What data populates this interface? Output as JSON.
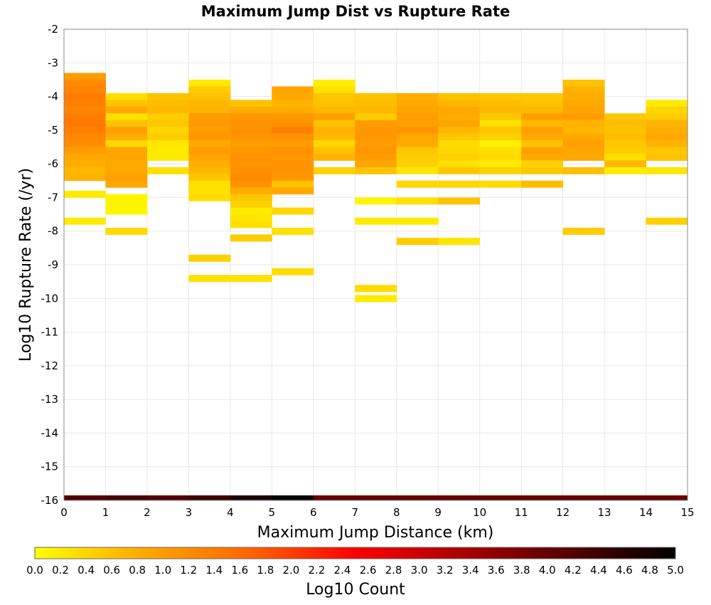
{
  "chart_data": {
    "type": "heatmap",
    "title": "Maximum Jump Dist vs Rupture Rate",
    "xlabel": "Maximum Jump Distance (km)",
    "ylabel": "Log10 Rupture Rate (/yr)",
    "xlim": [
      0,
      15
    ],
    "ylim": [
      -16,
      -2
    ],
    "x_ticks": [
      "0",
      "1",
      "2",
      "3",
      "4",
      "5",
      "6",
      "7",
      "8",
      "9",
      "10",
      "11",
      "12",
      "13",
      "14",
      "15"
    ],
    "y_ticks": [
      "-2",
      "-3",
      "-4",
      "-5",
      "-6",
      "-7",
      "-8",
      "-9",
      "-10",
      "-11",
      "-12",
      "-13",
      "-14",
      "-15",
      "-16"
    ],
    "x_bin_width": 1,
    "y_bin_width": 0.2,
    "grid": true,
    "colorbar": {
      "label": "Log10 Count",
      "range": [
        0,
        5
      ],
      "ticks": [
        "0.0",
        "0.2",
        "0.4",
        "0.6",
        "0.8",
        "1.0",
        "1.2",
        "1.4",
        "1.6",
        "1.8",
        "2.0",
        "2.2",
        "2.4",
        "2.6",
        "2.8",
        "3.0",
        "3.2",
        "3.4",
        "3.6",
        "3.8",
        "4.0",
        "4.2",
        "4.4",
        "4.6",
        "4.8",
        "5.0"
      ],
      "colors": [
        "#ffff00",
        "#ffaa00",
        "#ff6600",
        "#ff0000",
        "#aa0000",
        "#550000",
        "#000000"
      ],
      "placement": "bottom"
    },
    "cells": [
      {
        "x": 0,
        "y": -3.4,
        "v": 1.0
      },
      {
        "x": 0,
        "y": -3.6,
        "v": 1.2
      },
      {
        "x": 0,
        "y": -3.8,
        "v": 1.3
      },
      {
        "x": 0,
        "y": -4.0,
        "v": 1.4
      },
      {
        "x": 0,
        "y": -4.2,
        "v": 1.35
      },
      {
        "x": 0,
        "y": -4.4,
        "v": 1.3
      },
      {
        "x": 0,
        "y": -4.6,
        "v": 1.4
      },
      {
        "x": 0,
        "y": -4.8,
        "v": 1.45
      },
      {
        "x": 0,
        "y": -5.0,
        "v": 1.35
      },
      {
        "x": 0,
        "y": -5.2,
        "v": 1.25
      },
      {
        "x": 0,
        "y": -5.4,
        "v": 1.2
      },
      {
        "x": 0,
        "y": -5.6,
        "v": 1.0
      },
      {
        "x": 0,
        "y": -5.8,
        "v": 0.85
      },
      {
        "x": 0,
        "y": -6.0,
        "v": 0.8
      },
      {
        "x": 0,
        "y": -6.2,
        "v": 0.7
      },
      {
        "x": 0,
        "y": -6.4,
        "v": 0.75
      },
      {
        "x": 0,
        "y": -6.9,
        "v": 0.2
      },
      {
        "x": 0,
        "y": -7.7,
        "v": 0.2
      },
      {
        "x": 1,
        "y": -4.0,
        "v": 0.3
      },
      {
        "x": 1,
        "y": -4.2,
        "v": 0.6
      },
      {
        "x": 1,
        "y": -4.4,
        "v": 0.85
      },
      {
        "x": 1,
        "y": -4.6,
        "v": 0.3
      },
      {
        "x": 1,
        "y": -4.8,
        "v": 0.6
      },
      {
        "x": 1,
        "y": -5.0,
        "v": 0.95
      },
      {
        "x": 1,
        "y": -5.2,
        "v": 0.8
      },
      {
        "x": 1,
        "y": -5.4,
        "v": 0.4
      },
      {
        "x": 1,
        "y": -5.6,
        "v": 0.9
      },
      {
        "x": 1,
        "y": -5.8,
        "v": 0.9
      },
      {
        "x": 1,
        "y": -6.0,
        "v": 0.85
      },
      {
        "x": 1,
        "y": -6.2,
        "v": 0.85
      },
      {
        "x": 1,
        "y": -6.4,
        "v": 0.95
      },
      {
        "x": 1,
        "y": -6.6,
        "v": 0.85
      },
      {
        "x": 1,
        "y": -7.0,
        "v": 0.1
      },
      {
        "x": 1,
        "y": -7.2,
        "v": 0.1
      },
      {
        "x": 1,
        "y": -7.4,
        "v": 0.1
      },
      {
        "x": 1,
        "y": -8.0,
        "v": 0.35
      },
      {
        "x": 2,
        "y": -4.0,
        "v": 0.6
      },
      {
        "x": 2,
        "y": -4.2,
        "v": 0.65
      },
      {
        "x": 2,
        "y": -4.4,
        "v": 0.7
      },
      {
        "x": 2,
        "y": -4.6,
        "v": 0.5
      },
      {
        "x": 2,
        "y": -4.8,
        "v": 0.55
      },
      {
        "x": 2,
        "y": -5.0,
        "v": 0.4
      },
      {
        "x": 2,
        "y": -5.2,
        "v": 0.5
      },
      {
        "x": 2,
        "y": -5.4,
        "v": 0.25
      },
      {
        "x": 2,
        "y": -5.6,
        "v": 0.2
      },
      {
        "x": 2,
        "y": -5.8,
        "v": 0.2
      },
      {
        "x": 2,
        "y": -6.2,
        "v": 0.3
      },
      {
        "x": 3,
        "y": -3.6,
        "v": 0.2
      },
      {
        "x": 3,
        "y": -3.8,
        "v": 0.5
      },
      {
        "x": 3,
        "y": -4.0,
        "v": 0.6
      },
      {
        "x": 3,
        "y": -4.2,
        "v": 0.7
      },
      {
        "x": 3,
        "y": -4.4,
        "v": 0.75
      },
      {
        "x": 3,
        "y": -4.6,
        "v": 1.0
      },
      {
        "x": 3,
        "y": -4.8,
        "v": 1.05
      },
      {
        "x": 3,
        "y": -5.0,
        "v": 1.0
      },
      {
        "x": 3,
        "y": -5.2,
        "v": 1.05
      },
      {
        "x": 3,
        "y": -5.4,
        "v": 0.85
      },
      {
        "x": 3,
        "y": -5.6,
        "v": 1.0
      },
      {
        "x": 3,
        "y": -5.8,
        "v": 0.9
      },
      {
        "x": 3,
        "y": -6.0,
        "v": 0.8
      },
      {
        "x": 3,
        "y": -6.2,
        "v": 0.7
      },
      {
        "x": 3,
        "y": -6.4,
        "v": 0.55
      },
      {
        "x": 3,
        "y": -6.6,
        "v": 0.3
      },
      {
        "x": 3,
        "y": -6.8,
        "v": 0.3
      },
      {
        "x": 3,
        "y": -7.0,
        "v": 0.35
      },
      {
        "x": 3,
        "y": -8.8,
        "v": 0.45
      },
      {
        "x": 3,
        "y": -9.4,
        "v": 0.3
      },
      {
        "x": 4,
        "y": -4.2,
        "v": 0.6
      },
      {
        "x": 4,
        "y": -4.4,
        "v": 0.8
      },
      {
        "x": 4,
        "y": -4.6,
        "v": 1.05
      },
      {
        "x": 4,
        "y": -4.8,
        "v": 1.1
      },
      {
        "x": 4,
        "y": -5.0,
        "v": 1.15
      },
      {
        "x": 4,
        "y": -5.2,
        "v": 1.1
      },
      {
        "x": 4,
        "y": -5.4,
        "v": 1.0
      },
      {
        "x": 4,
        "y": -5.6,
        "v": 1.05
      },
      {
        "x": 4,
        "y": -5.8,
        "v": 1.15
      },
      {
        "x": 4,
        "y": -6.0,
        "v": 1.1
      },
      {
        "x": 4,
        "y": -6.2,
        "v": 1.15
      },
      {
        "x": 4,
        "y": -6.4,
        "v": 1.2
      },
      {
        "x": 4,
        "y": -6.6,
        "v": 1.1
      },
      {
        "x": 4,
        "y": -6.8,
        "v": 0.8
      },
      {
        "x": 4,
        "y": -7.0,
        "v": 0.55
      },
      {
        "x": 4,
        "y": -7.2,
        "v": 0.45
      },
      {
        "x": 4,
        "y": -7.4,
        "v": 0.2
      },
      {
        "x": 4,
        "y": -7.6,
        "v": 0.25
      },
      {
        "x": 4,
        "y": -7.8,
        "v": 0.3
      },
      {
        "x": 4,
        "y": -8.2,
        "v": 0.5
      },
      {
        "x": 4,
        "y": -9.4,
        "v": 0.3
      },
      {
        "x": 5,
        "y": -3.8,
        "v": 0.9
      },
      {
        "x": 5,
        "y": -4.0,
        "v": 0.85
      },
      {
        "x": 5,
        "y": -4.2,
        "v": 0.75
      },
      {
        "x": 5,
        "y": -4.4,
        "v": 0.8
      },
      {
        "x": 5,
        "y": -4.6,
        "v": 1.05
      },
      {
        "x": 5,
        "y": -4.8,
        "v": 1.15
      },
      {
        "x": 5,
        "y": -5.0,
        "v": 1.35
      },
      {
        "x": 5,
        "y": -5.2,
        "v": 1.15
      },
      {
        "x": 5,
        "y": -5.4,
        "v": 1.0
      },
      {
        "x": 5,
        "y": -5.6,
        "v": 1.15
      },
      {
        "x": 5,
        "y": -5.8,
        "v": 1.05
      },
      {
        "x": 5,
        "y": -6.0,
        "v": 1.1
      },
      {
        "x": 5,
        "y": -6.2,
        "v": 1.1
      },
      {
        "x": 5,
        "y": -6.4,
        "v": 1.05
      },
      {
        "x": 5,
        "y": -6.6,
        "v": 0.6
      },
      {
        "x": 5,
        "y": -6.8,
        "v": 0.85
      },
      {
        "x": 5,
        "y": -7.4,
        "v": 0.4
      },
      {
        "x": 5,
        "y": -8.0,
        "v": 0.3
      },
      {
        "x": 5,
        "y": -9.2,
        "v": 0.35
      },
      {
        "x": 6,
        "y": -3.6,
        "v": 0.15
      },
      {
        "x": 6,
        "y": -3.8,
        "v": 0.3
      },
      {
        "x": 6,
        "y": -4.0,
        "v": 0.55
      },
      {
        "x": 6,
        "y": -4.2,
        "v": 0.6
      },
      {
        "x": 6,
        "y": -4.4,
        "v": 0.7
      },
      {
        "x": 6,
        "y": -4.6,
        "v": 0.95
      },
      {
        "x": 6,
        "y": -4.8,
        "v": 0.6
      },
      {
        "x": 6,
        "y": -5.0,
        "v": 0.75
      },
      {
        "x": 6,
        "y": -5.2,
        "v": 0.7
      },
      {
        "x": 6,
        "y": -5.4,
        "v": 0.4
      },
      {
        "x": 6,
        "y": -5.6,
        "v": 0.6
      },
      {
        "x": 6,
        "y": -5.8,
        "v": 0.75
      },
      {
        "x": 6,
        "y": -6.2,
        "v": 0.45
      },
      {
        "x": 7,
        "y": -4.0,
        "v": 0.6
      },
      {
        "x": 7,
        "y": -4.2,
        "v": 0.65
      },
      {
        "x": 7,
        "y": -4.4,
        "v": 0.7
      },
      {
        "x": 7,
        "y": -4.6,
        "v": 0.5
      },
      {
        "x": 7,
        "y": -4.8,
        "v": 1.0
      },
      {
        "x": 7,
        "y": -5.0,
        "v": 1.05
      },
      {
        "x": 7,
        "y": -5.2,
        "v": 1.05
      },
      {
        "x": 7,
        "y": -5.4,
        "v": 1.0
      },
      {
        "x": 7,
        "y": -5.6,
        "v": 1.05
      },
      {
        "x": 7,
        "y": -5.8,
        "v": 1.0
      },
      {
        "x": 7,
        "y": -6.0,
        "v": 0.9
      },
      {
        "x": 7,
        "y": -6.2,
        "v": 0.6
      },
      {
        "x": 7,
        "y": -7.1,
        "v": 0.1
      },
      {
        "x": 7,
        "y": -7.7,
        "v": 0.2
      },
      {
        "x": 7,
        "y": -9.7,
        "v": 0.35
      },
      {
        "x": 7,
        "y": -10.0,
        "v": 0.2
      },
      {
        "x": 8,
        "y": -4.0,
        "v": 0.8
      },
      {
        "x": 8,
        "y": -4.2,
        "v": 0.85
      },
      {
        "x": 8,
        "y": -4.4,
        "v": 0.9
      },
      {
        "x": 8,
        "y": -4.6,
        "v": 1.0
      },
      {
        "x": 8,
        "y": -4.8,
        "v": 0.95
      },
      {
        "x": 8,
        "y": -5.0,
        "v": 1.1
      },
      {
        "x": 8,
        "y": -5.2,
        "v": 0.9
      },
      {
        "x": 8,
        "y": -5.4,
        "v": 0.85
      },
      {
        "x": 8,
        "y": -5.6,
        "v": 0.55
      },
      {
        "x": 8,
        "y": -5.8,
        "v": 0.5
      },
      {
        "x": 8,
        "y": -6.0,
        "v": 0.45
      },
      {
        "x": 8,
        "y": -6.2,
        "v": 0.25
      },
      {
        "x": 8,
        "y": -6.6,
        "v": 0.4
      },
      {
        "x": 8,
        "y": -7.1,
        "v": 0.3
      },
      {
        "x": 8,
        "y": -7.7,
        "v": 0.2
      },
      {
        "x": 8,
        "y": -8.3,
        "v": 0.5
      },
      {
        "x": 9,
        "y": -4.0,
        "v": 0.6
      },
      {
        "x": 9,
        "y": -4.2,
        "v": 0.7
      },
      {
        "x": 9,
        "y": -4.4,
        "v": 0.85
      },
      {
        "x": 9,
        "y": -4.6,
        "v": 0.8
      },
      {
        "x": 9,
        "y": -4.8,
        "v": 0.9
      },
      {
        "x": 9,
        "y": -5.0,
        "v": 0.7
      },
      {
        "x": 9,
        "y": -5.2,
        "v": 0.55
      },
      {
        "x": 9,
        "y": -5.4,
        "v": 0.35
      },
      {
        "x": 9,
        "y": -5.6,
        "v": 0.4
      },
      {
        "x": 9,
        "y": -5.8,
        "v": 0.45
      },
      {
        "x": 9,
        "y": -6.0,
        "v": 0.3
      },
      {
        "x": 9,
        "y": -6.2,
        "v": 0.55
      },
      {
        "x": 9,
        "y": -6.6,
        "v": 0.4
      },
      {
        "x": 9,
        "y": -7.1,
        "v": 0.6
      },
      {
        "x": 9,
        "y": -8.3,
        "v": 0.25
      },
      {
        "x": 10,
        "y": -4.0,
        "v": 0.55
      },
      {
        "x": 10,
        "y": -4.2,
        "v": 0.65
      },
      {
        "x": 10,
        "y": -4.4,
        "v": 0.7
      },
      {
        "x": 10,
        "y": -4.6,
        "v": 0.55
      },
      {
        "x": 10,
        "y": -4.8,
        "v": 0.3
      },
      {
        "x": 10,
        "y": -5.0,
        "v": 0.55
      },
      {
        "x": 10,
        "y": -5.2,
        "v": 0.45
      },
      {
        "x": 10,
        "y": -5.4,
        "v": 0.15
      },
      {
        "x": 10,
        "y": -5.6,
        "v": 0.3
      },
      {
        "x": 10,
        "y": -5.8,
        "v": 0.35
      },
      {
        "x": 10,
        "y": -6.0,
        "v": 0.2
      },
      {
        "x": 10,
        "y": -6.2,
        "v": 0.45
      },
      {
        "x": 10,
        "y": -6.6,
        "v": 0.35
      },
      {
        "x": 11,
        "y": -4.0,
        "v": 0.55
      },
      {
        "x": 11,
        "y": -4.2,
        "v": 0.6
      },
      {
        "x": 11,
        "y": -4.4,
        "v": 0.7
      },
      {
        "x": 11,
        "y": -4.6,
        "v": 0.95
      },
      {
        "x": 11,
        "y": -4.8,
        "v": 0.7
      },
      {
        "x": 11,
        "y": -5.0,
        "v": 0.95
      },
      {
        "x": 11,
        "y": -5.2,
        "v": 0.85
      },
      {
        "x": 11,
        "y": -5.4,
        "v": 0.6
      },
      {
        "x": 11,
        "y": -5.6,
        "v": 0.95
      },
      {
        "x": 11,
        "y": -5.8,
        "v": 0.85
      },
      {
        "x": 11,
        "y": -6.0,
        "v": 0.45
      },
      {
        "x": 11,
        "y": -6.2,
        "v": 0.55
      },
      {
        "x": 11,
        "y": -6.6,
        "v": 0.65
      },
      {
        "x": 12,
        "y": -3.6,
        "v": 0.6
      },
      {
        "x": 12,
        "y": -3.8,
        "v": 0.75
      },
      {
        "x": 12,
        "y": -4.0,
        "v": 0.8
      },
      {
        "x": 12,
        "y": -4.2,
        "v": 0.85
      },
      {
        "x": 12,
        "y": -4.4,
        "v": 0.9
      },
      {
        "x": 12,
        "y": -4.6,
        "v": 1.0
      },
      {
        "x": 12,
        "y": -4.8,
        "v": 0.75
      },
      {
        "x": 12,
        "y": -5.0,
        "v": 0.7
      },
      {
        "x": 12,
        "y": -5.2,
        "v": 0.85
      },
      {
        "x": 12,
        "y": -5.4,
        "v": 0.95
      },
      {
        "x": 12,
        "y": -5.6,
        "v": 0.9
      },
      {
        "x": 12,
        "y": -5.8,
        "v": 0.85
      },
      {
        "x": 12,
        "y": -6.2,
        "v": 0.65
      },
      {
        "x": 12,
        "y": -8.0,
        "v": 0.5
      },
      {
        "x": 13,
        "y": -4.6,
        "v": 0.55
      },
      {
        "x": 13,
        "y": -4.8,
        "v": 0.65
      },
      {
        "x": 13,
        "y": -5.0,
        "v": 0.6
      },
      {
        "x": 13,
        "y": -5.2,
        "v": 0.65
      },
      {
        "x": 13,
        "y": -5.4,
        "v": 0.55
      },
      {
        "x": 13,
        "y": -5.6,
        "v": 0.5
      },
      {
        "x": 13,
        "y": -5.8,
        "v": 0.3
      },
      {
        "x": 13,
        "y": -6.0,
        "v": 0.7
      },
      {
        "x": 13,
        "y": -6.2,
        "v": 0.2
      },
      {
        "x": 14,
        "y": -4.2,
        "v": 0.2
      },
      {
        "x": 14,
        "y": -4.4,
        "v": 0.4
      },
      {
        "x": 14,
        "y": -4.6,
        "v": 0.5
      },
      {
        "x": 14,
        "y": -4.8,
        "v": 0.75
      },
      {
        "x": 14,
        "y": -5.0,
        "v": 0.8
      },
      {
        "x": 14,
        "y": -5.2,
        "v": 0.85
      },
      {
        "x": 14,
        "y": -5.4,
        "v": 0.75
      },
      {
        "x": 14,
        "y": -5.6,
        "v": 0.55
      },
      {
        "x": 14,
        "y": -5.8,
        "v": 0.6
      },
      {
        "x": 14,
        "y": -6.2,
        "v": 0.25
      },
      {
        "x": 14,
        "y": -7.7,
        "v": 0.45
      }
    ],
    "bottom_band_y": -16,
    "bottom_band": [
      4.2,
      4.3,
      4.2,
      4.4,
      4.7,
      4.9,
      4.0,
      4.0,
      4.0,
      4.0,
      4.0,
      4.0,
      4.0,
      4.0,
      4.0
    ]
  }
}
